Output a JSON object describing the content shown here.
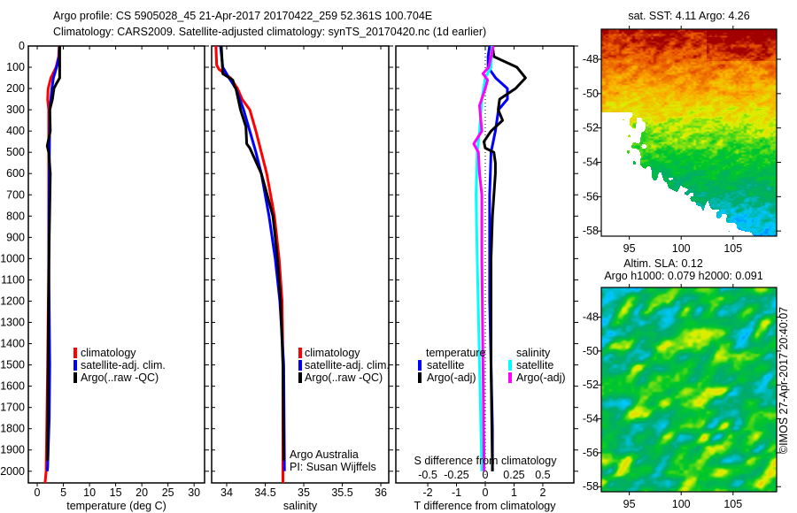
{
  "header": {
    "line1": "Argo profile: CS 5905028_45 21-Apr-2017 20170422_259 52.361S 100.704E",
    "line2": "Climatology: CARS2009. Satellite-adjusted climatology: synTS_20170420.nc (1d earlier)"
  },
  "colors": {
    "climatology": "#ff0000",
    "satellite": "#0000ff",
    "argo": "#000000",
    "sal_satellite": "#00ffff",
    "sal_argo": "#ff00ff"
  },
  "depth_ticks": [
    "0",
    "100",
    "200",
    "300",
    "400",
    "500",
    "600",
    "700",
    "800",
    "900",
    "1000",
    "1100",
    "1200",
    "1300",
    "1400",
    "1500",
    "1600",
    "1700",
    "1800",
    "1900",
    "2000"
  ],
  "credit": {
    "line1": "Argo Australia",
    "line2": "PI: Susan Wijffels"
  },
  "maps": {
    "sst_title": "sat. SST: 4.11  Argo: 4.26",
    "sla_title1": "Altim. SLA: 0.12",
    "sla_title2": "Argo h1000: 0.079 h2000: 0.091",
    "lat_ticks": [
      "-48",
      "-50",
      "-52",
      "-54",
      "-56",
      "-58"
    ],
    "lon_ticks": [
      "95",
      "100",
      "105"
    ],
    "stamp": "©IMOS 27-Apr-2017 20:40:07"
  },
  "chart_data": [
    {
      "type": "line",
      "xlabel": "temperature (deg C)",
      "ylabel": "depth",
      "xlim": [
        -1.7,
        32
      ],
      "ylim": [
        2055,
        0
      ],
      "xticks": [
        "0",
        "5",
        "10",
        "15",
        "20",
        "25",
        "30"
      ],
      "legend": [
        "climatology",
        "satellite-adj. clim.",
        "Argo(..raw -QC)"
      ],
      "series": [
        {
          "name": "climatology",
          "color": "#ff0000",
          "depth": [
            0,
            50,
            100,
            150,
            200,
            250,
            300,
            500,
            700,
            1000,
            1500,
            2000,
            2055
          ],
          "values": [
            4.2,
            4.1,
            3.6,
            2.6,
            2.1,
            2.0,
            2.2,
            2.2,
            2.2,
            2.2,
            2.0,
            1.7,
            1.5
          ]
        },
        {
          "name": "satellite-adj. clim.",
          "color": "#0000ff",
          "depth": [
            0,
            50,
            100,
            150,
            200,
            300,
            600,
            1000,
            1500,
            1750,
            1980,
            2000
          ],
          "values": [
            4.3,
            4.2,
            3.7,
            3.1,
            2.8,
            2.4,
            2.3,
            2.2,
            2.4,
            2.3,
            2.0,
            1.9
          ]
        },
        {
          "name": "Argo(..raw -QC)",
          "color": "#000000",
          "depth": [
            0,
            50,
            150,
            180,
            200,
            250,
            300,
            400,
            470,
            500,
            600,
            900,
            1400,
            1950
          ],
          "values": [
            4.3,
            4.3,
            4.3,
            3.6,
            3.2,
            2.9,
            2.4,
            2.5,
            1.9,
            2.2,
            2.5,
            2.3,
            2.1,
            2.0
          ]
        }
      ]
    },
    {
      "type": "line",
      "xlabel": "salinity",
      "ylabel": "depth",
      "xlim": [
        33.805,
        36.103
      ],
      "ylim": [
        2055,
        0
      ],
      "xticks": [
        "34",
        "34.5",
        "35",
        "35.5",
        "36"
      ],
      "legend": [
        "climatology",
        "satellite-adj. clim.",
        "Argo(..raw -QC)"
      ],
      "series": [
        {
          "name": "climatology",
          "color": "#ff0000",
          "depth": [
            0,
            90,
            110,
            150,
            200,
            250,
            300,
            400,
            500,
            600,
            700,
            800,
            1000,
            1200,
            1500,
            2000,
            2055
          ],
          "values": [
            33.86,
            33.87,
            33.9,
            34.05,
            34.14,
            34.2,
            34.3,
            34.38,
            34.45,
            34.52,
            34.57,
            34.62,
            34.68,
            34.72,
            34.73,
            34.73,
            34.73
          ]
        },
        {
          "name": "satellite-adj. clim.",
          "color": "#0000ff",
          "depth": [
            0,
            100,
            150,
            200,
            300,
            400,
            500,
            600,
            800,
            1000,
            1200,
            1500,
            2000
          ],
          "values": [
            33.92,
            33.95,
            34.03,
            34.12,
            34.22,
            34.3,
            34.38,
            34.45,
            34.55,
            34.63,
            34.69,
            34.74,
            34.75
          ]
        },
        {
          "name": "Argo(..raw -QC)",
          "color": "#000000",
          "depth": [
            0,
            130,
            160,
            190,
            200,
            250,
            300,
            380,
            460,
            480,
            600,
            800,
            1000,
            1200,
            1500,
            1950
          ],
          "values": [
            33.93,
            33.95,
            34.08,
            34.1,
            34.12,
            34.15,
            34.18,
            34.25,
            34.26,
            34.3,
            34.45,
            34.6,
            34.66,
            34.7,
            34.73,
            34.74
          ]
        }
      ]
    },
    {
      "type": "line",
      "xlabel": "T difference from climatology",
      "x2label": "S difference from climatology",
      "ylabel": "depth",
      "xlim": [
        -3.11,
        3.08
      ],
      "x2lim": [
        -0.7775,
        0.77
      ],
      "ylim": [
        2055,
        0
      ],
      "xticks": [
        "-2",
        "-1",
        "0",
        "1",
        "2"
      ],
      "x2ticks": [
        "-0.5",
        "-0.25",
        "0",
        "0.25",
        "0.5"
      ],
      "legend_titles": [
        "temperature",
        "salinity"
      ],
      "legend": [
        "satellite",
        "Argo(-adj)",
        "satellite",
        "Argo(-adj)"
      ],
      "series": [
        {
          "name": "T satellite",
          "axis": "T",
          "color": "#0000ff",
          "depth": [
            0,
            50,
            100,
            150,
            200,
            250,
            300,
            400,
            500,
            700,
            1200,
            1800,
            2000
          ],
          "values": [
            0.15,
            0.1,
            0.1,
            0.36,
            0.77,
            0.77,
            0.46,
            0.35,
            0.2,
            0.15,
            0.15,
            0.25,
            0.25
          ]
        },
        {
          "name": "T Argo(-adj)",
          "axis": "T",
          "color": "#000000",
          "depth": [
            0,
            50,
            100,
            150,
            200,
            250,
            300,
            350,
            400,
            450,
            480,
            500,
            550,
            600,
            800,
            1000,
            1500,
            2000
          ],
          "values": [
            0.25,
            0.3,
            1.1,
            1.4,
            1.05,
            0.5,
            0.45,
            0.6,
            0.2,
            -0.05,
            0.0,
            0.3,
            0.35,
            0.35,
            0.25,
            0.2,
            0.2,
            0.25
          ]
        },
        {
          "name": "S satellite",
          "axis": "S",
          "color": "#00ffff",
          "depth": [
            0,
            100,
            150,
            250,
            400,
            500,
            700,
            1000,
            1500,
            2000
          ],
          "values": [
            0.06,
            0.05,
            0.0,
            -0.03,
            -0.05,
            -0.07,
            -0.08,
            -0.07,
            -0.05,
            -0.03
          ]
        },
        {
          "name": "S Argo(-adj)",
          "axis": "S",
          "color": "#ff00ff",
          "depth": [
            0,
            100,
            130,
            160,
            200,
            280,
            400,
            460,
            500,
            600,
            700,
            1000,
            2000
          ],
          "values": [
            0.07,
            0.03,
            -0.02,
            0.02,
            0.0,
            -0.05,
            -0.03,
            -0.1,
            -0.06,
            -0.05,
            -0.03,
            -0.03,
            -0.01
          ]
        }
      ]
    }
  ]
}
